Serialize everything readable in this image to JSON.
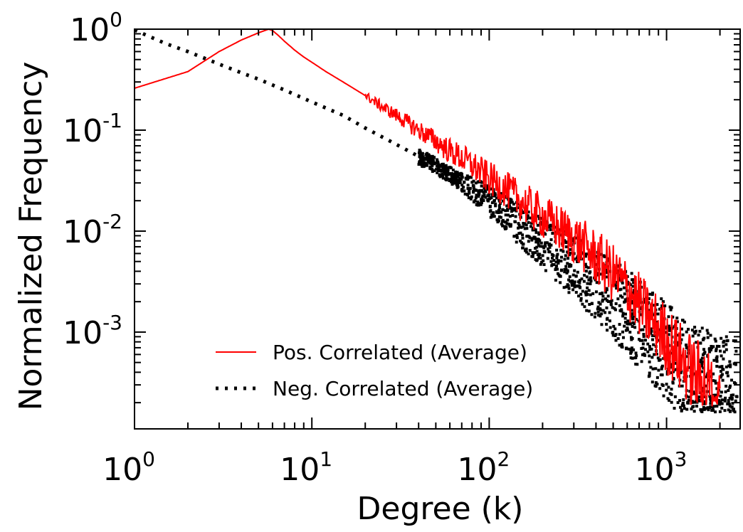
{
  "chart_data": {
    "type": "line",
    "title": "",
    "xlabel": "Degree (k)",
    "ylabel": "Normalized Frequency",
    "xscale": "log",
    "yscale": "log",
    "xlim": [
      1,
      2600
    ],
    "ylim": [
      0.00011,
      1.0
    ],
    "grid": false,
    "legend_position": "lower-left",
    "x_ticks": [
      {
        "base": "10",
        "exp": "0",
        "value": 1
      },
      {
        "base": "10",
        "exp": "1",
        "value": 10
      },
      {
        "base": "10",
        "exp": "2",
        "value": 100
      },
      {
        "base": "10",
        "exp": "3",
        "value": 1000
      }
    ],
    "y_ticks": [
      {
        "base": "10",
        "exp": "0",
        "value": 1
      },
      {
        "base": "10",
        "exp": "-1",
        "value": 0.1
      },
      {
        "base": "10",
        "exp": "-2",
        "value": 0.01
      },
      {
        "base": "10",
        "exp": "-3",
        "value": 0.001
      }
    ],
    "series": [
      {
        "name": "Pos. Correlated (Average)",
        "color": "#ff0000",
        "style": "solid",
        "x": [
          1,
          2,
          3,
          4,
          5,
          5.7,
          6,
          6.5,
          7,
          8,
          9,
          10,
          12,
          15,
          20,
          25,
          30,
          40,
          50,
          60,
          70,
          80,
          100,
          120,
          150,
          200,
          250,
          300,
          350,
          400,
          500,
          600,
          700,
          800,
          900,
          1000,
          1100,
          1200,
          1400,
          1600,
          1800,
          2000
        ],
        "y": [
          0.26,
          0.38,
          0.6,
          0.78,
          0.92,
          1.0,
          0.97,
          0.86,
          0.76,
          0.62,
          0.53,
          0.47,
          0.38,
          0.3,
          0.22,
          0.17,
          0.14,
          0.1,
          0.078,
          0.062,
          0.053,
          0.045,
          0.033,
          0.027,
          0.02,
          0.014,
          0.0105,
          0.0085,
          0.0068,
          0.0055,
          0.0038,
          0.0027,
          0.0019,
          0.0014,
          0.0011,
          0.00085,
          0.00068,
          0.00055,
          0.0004,
          0.00032,
          0.00027,
          0.00024
        ]
      },
      {
        "name": "Neg. Correlated (Average)",
        "color": "#000000",
        "style": "dotted",
        "x": [
          1,
          1.5,
          2,
          3,
          4,
          5,
          7,
          10,
          15,
          20,
          30,
          40,
          50,
          60,
          70,
          80,
          100,
          120,
          150,
          200,
          250,
          300,
          400,
          500,
          600,
          700,
          800,
          900,
          1000,
          1200,
          1500,
          2000,
          2500
        ],
        "y": [
          0.98,
          0.72,
          0.6,
          0.45,
          0.37,
          0.32,
          0.25,
          0.19,
          0.14,
          0.105,
          0.072,
          0.055,
          0.044,
          0.036,
          0.031,
          0.026,
          0.02,
          0.0155,
          0.0115,
          0.0076,
          0.0056,
          0.0044,
          0.003,
          0.0021,
          0.0016,
          0.0012,
          0.00095,
          0.00077,
          0.00062,
          0.00045,
          0.00032,
          0.00024,
          0.00021
        ]
      }
    ]
  }
}
